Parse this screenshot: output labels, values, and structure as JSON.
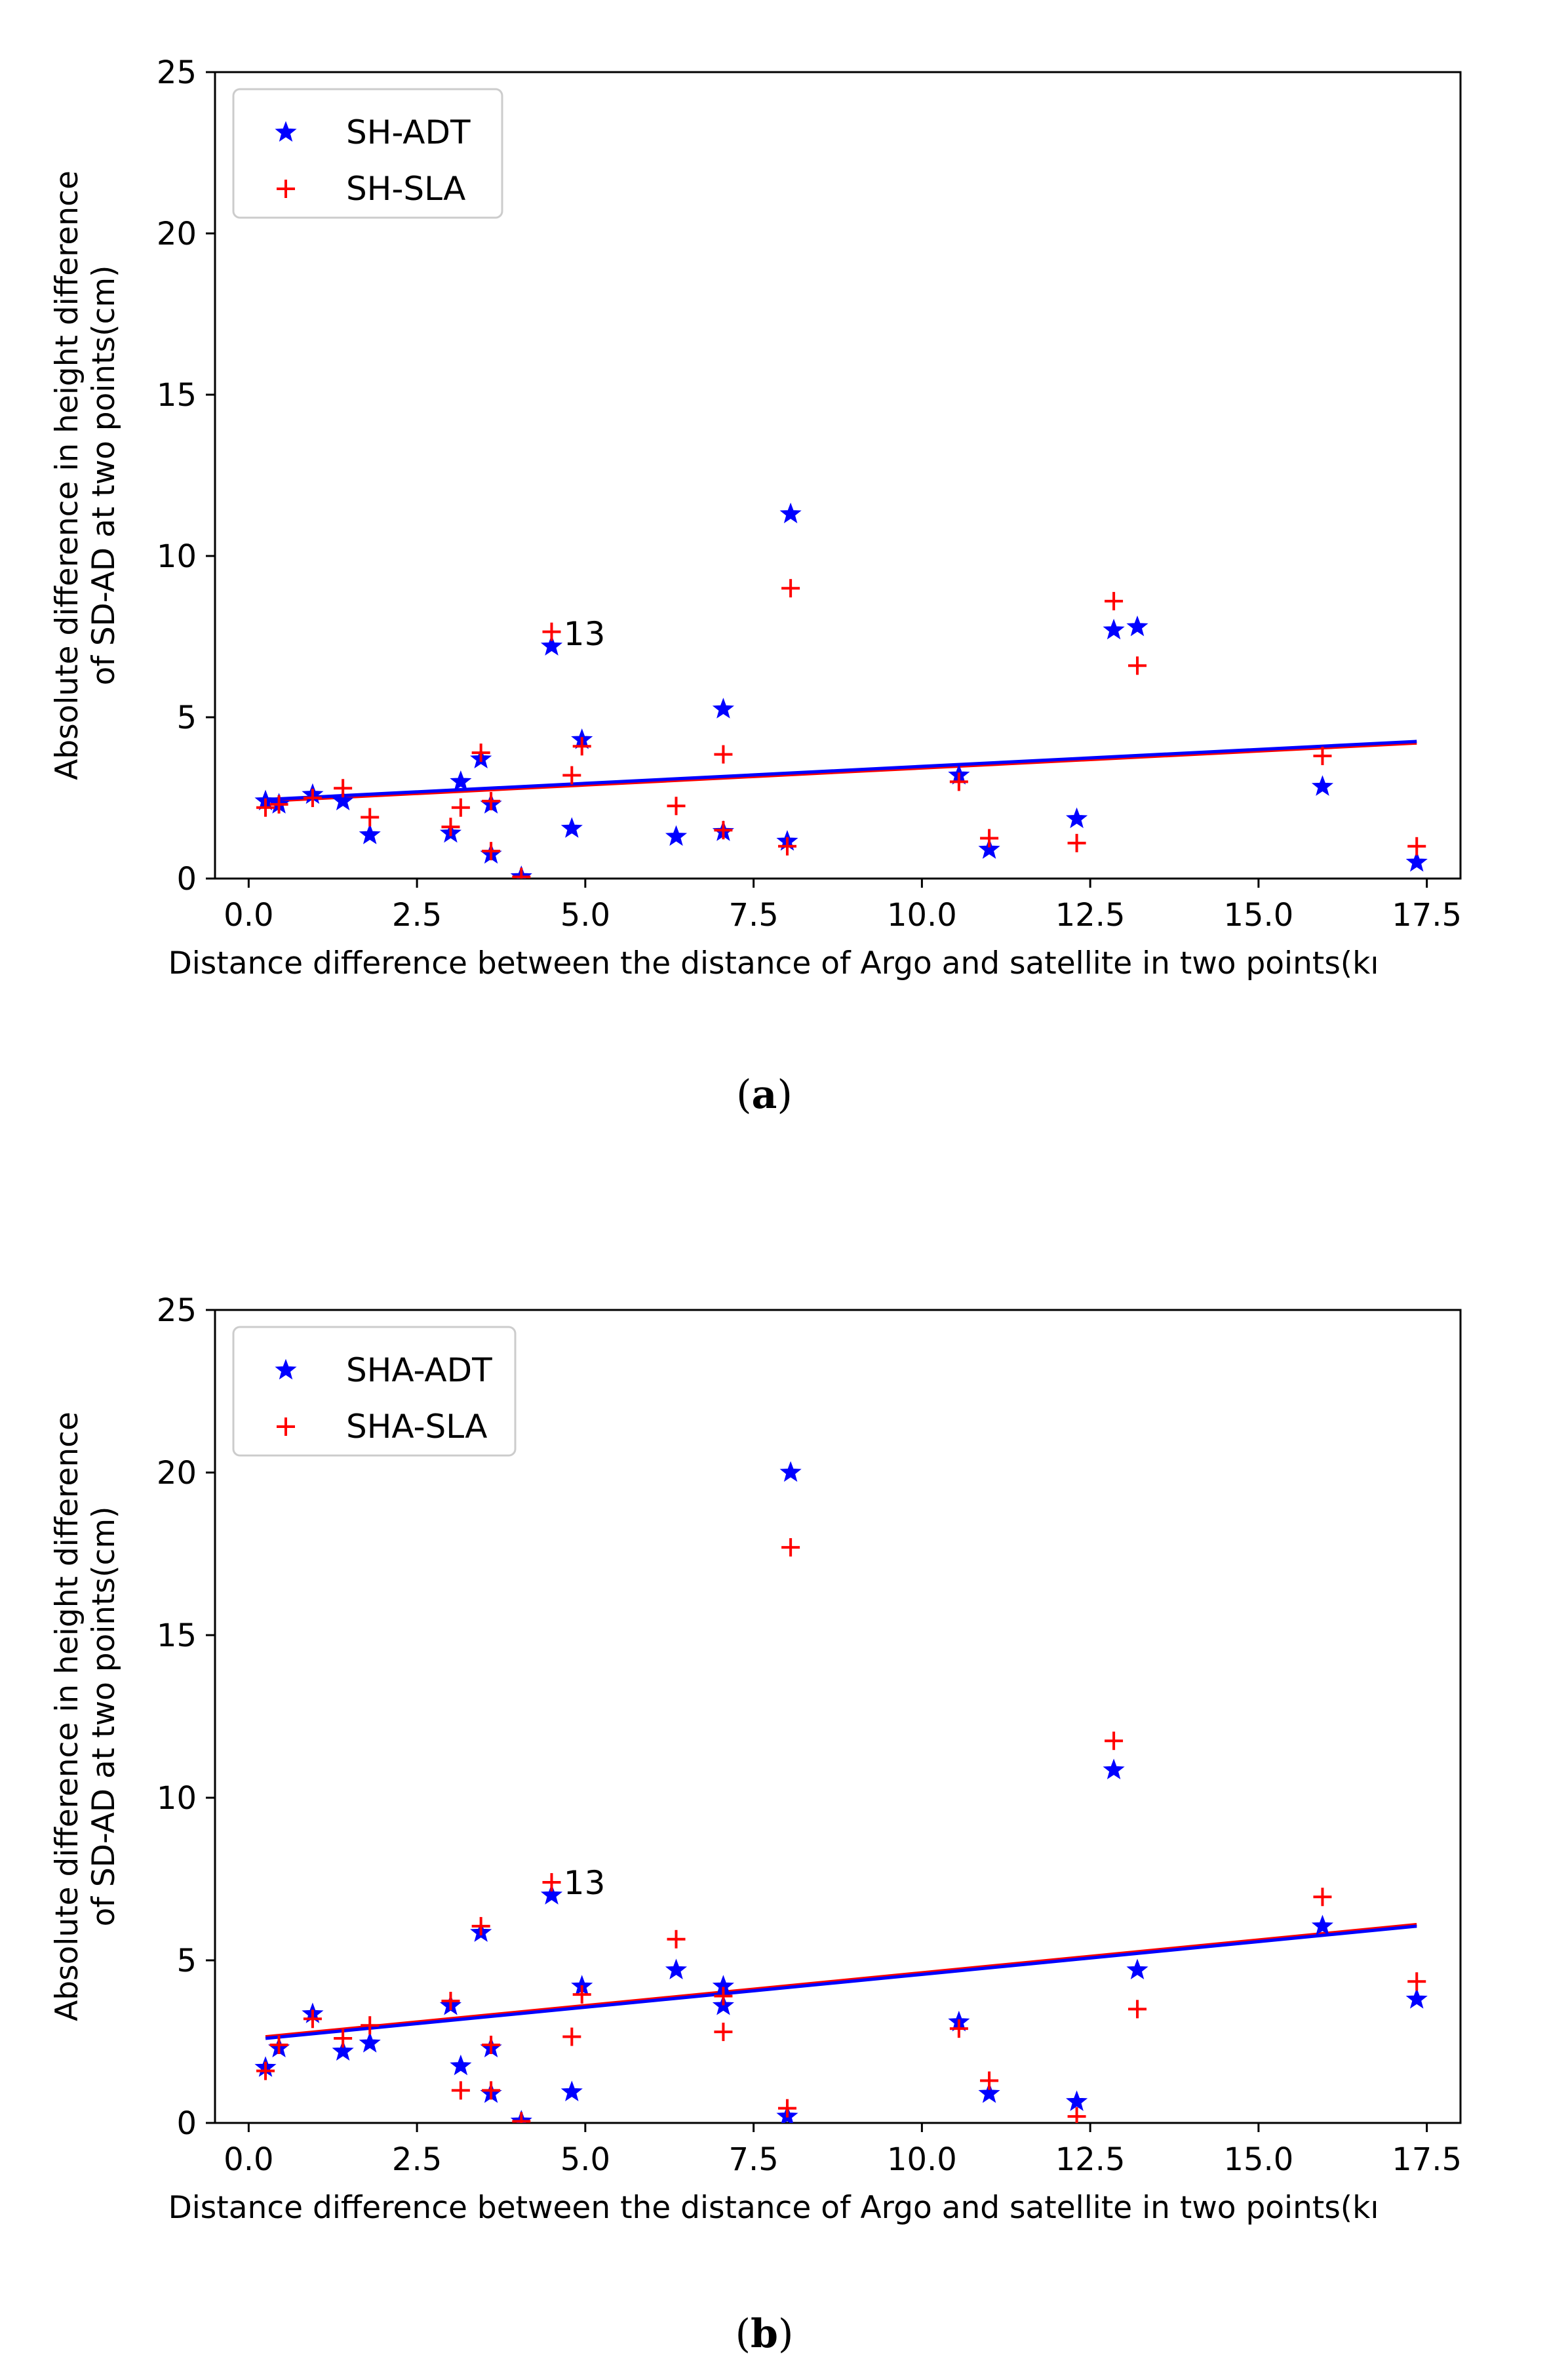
{
  "colors": {
    "adt": "#0000ff",
    "sla": "#ff0000",
    "axis": "#000000",
    "background": "#ffffff"
  },
  "chart_data": [
    {
      "id": "a",
      "type": "scatter",
      "caption": "(a)",
      "caption_letter": "a",
      "xlabel": "Distance difference between the distance of Argo and satellite in two points(kı",
      "ylabel_line1": "Absolute difference in height difference",
      "ylabel_line2": "of SD-AD at two points(cm)",
      "xlim": [
        -0.5,
        18.0
      ],
      "ylim": [
        0,
        25
      ],
      "xticks": [
        0.0,
        2.5,
        5.0,
        7.5,
        10.0,
        12.5,
        15.0,
        17.5
      ],
      "xtick_labels": [
        "0.0",
        "2.5",
        "5.0",
        "7.5",
        "10.0",
        "12.5",
        "15.0",
        "17.5"
      ],
      "yticks": [
        0,
        5,
        10,
        15,
        20,
        25
      ],
      "ytick_labels": [
        "0",
        "5",
        "10",
        "15",
        "20",
        "25"
      ],
      "legend_position": "top-left",
      "annotation": {
        "text": "13",
        "x": 4.6,
        "y": 7.6
      },
      "series": [
        {
          "name": "SH-ADT",
          "marker": "star",
          "color": "#0000ff",
          "x": [
            0.25,
            0.45,
            0.95,
            1.4,
            1.8,
            3.0,
            3.15,
            3.45,
            3.6,
            3.6,
            4.05,
            4.5,
            4.8,
            4.95,
            6.35,
            7.05,
            7.05,
            8.0,
            8.05,
            10.55,
            11.0,
            12.3,
            12.85,
            13.2,
            15.95,
            17.35
          ],
          "y": [
            2.4,
            2.3,
            2.6,
            2.4,
            1.35,
            1.4,
            3.0,
            3.7,
            2.3,
            0.75,
            0.05,
            7.2,
            1.55,
            4.3,
            1.3,
            1.45,
            5.25,
            1.15,
            11.3,
            3.2,
            0.9,
            1.85,
            7.7,
            7.8,
            2.85,
            0.5
          ]
        },
        {
          "name": "SH-SLA",
          "marker": "plus",
          "color": "#ff0000",
          "x": [
            0.25,
            0.45,
            0.95,
            1.4,
            1.8,
            3.0,
            3.15,
            3.45,
            3.6,
            3.6,
            4.05,
            4.5,
            4.8,
            4.95,
            6.35,
            7.05,
            7.05,
            8.0,
            8.05,
            10.55,
            11.0,
            12.3,
            12.85,
            13.2,
            15.95,
            17.35
          ],
          "y": [
            2.2,
            2.3,
            2.5,
            2.8,
            1.9,
            1.6,
            2.2,
            3.9,
            2.4,
            0.85,
            0.05,
            7.65,
            3.2,
            4.1,
            2.25,
            1.5,
            3.85,
            1.0,
            9.0,
            3.0,
            1.25,
            1.1,
            8.6,
            6.6,
            3.8,
            1.0
          ]
        }
      ],
      "fit_lines": [
        {
          "series": "SH-ADT",
          "color": "#0000ff",
          "x": [
            0.25,
            17.35
          ],
          "y": [
            2.45,
            4.25
          ]
        },
        {
          "series": "SH-SLA",
          "color": "#ff0000",
          "x": [
            0.25,
            17.35
          ],
          "y": [
            2.4,
            4.2
          ]
        }
      ]
    },
    {
      "id": "b",
      "type": "scatter",
      "caption": "(b)",
      "caption_letter": "b",
      "xlabel": "Distance difference between the distance of Argo and satellite in two points(kı",
      "ylabel_line1": "Absolute difference in height difference",
      "ylabel_line2": "of SD-AD at two points(cm)",
      "xlim": [
        -0.5,
        18.0
      ],
      "ylim": [
        0,
        25
      ],
      "xticks": [
        0.0,
        2.5,
        5.0,
        7.5,
        10.0,
        12.5,
        15.0,
        17.5
      ],
      "xtick_labels": [
        "0.0",
        "2.5",
        "5.0",
        "7.5",
        "10.0",
        "12.5",
        "15.0",
        "17.5"
      ],
      "yticks": [
        0,
        5,
        10,
        15,
        20,
        25
      ],
      "ytick_labels": [
        "0",
        "5",
        "10",
        "15",
        "20",
        "25"
      ],
      "legend_position": "top-left",
      "annotation": {
        "text": "13",
        "x": 4.6,
        "y": 7.4
      },
      "series": [
        {
          "name": "SHA-ADT",
          "marker": "star",
          "color": "#0000ff",
          "x": [
            0.25,
            0.45,
            0.95,
            1.4,
            1.8,
            3.0,
            3.15,
            3.45,
            3.6,
            3.6,
            4.05,
            4.5,
            4.8,
            4.95,
            6.35,
            7.05,
            7.05,
            8.0,
            8.05,
            10.55,
            11.0,
            12.3,
            12.85,
            13.2,
            15.95,
            17.35
          ],
          "y": [
            1.7,
            2.3,
            3.35,
            2.2,
            2.45,
            3.6,
            1.75,
            5.85,
            2.3,
            0.9,
            0.05,
            7.0,
            0.95,
            4.2,
            4.7,
            3.6,
            4.2,
            0.2,
            20.0,
            3.1,
            0.9,
            0.65,
            10.85,
            4.7,
            6.05,
            3.8
          ]
        },
        {
          "name": "SHA-SLA",
          "marker": "plus",
          "color": "#ff0000",
          "x": [
            0.25,
            0.45,
            0.95,
            1.4,
            1.8,
            3.0,
            3.15,
            3.45,
            3.6,
            3.6,
            4.05,
            4.5,
            4.8,
            4.95,
            6.35,
            7.05,
            7.05,
            8.0,
            8.05,
            10.55,
            11.0,
            12.3,
            12.85,
            13.2,
            15.95,
            17.35
          ],
          "y": [
            1.6,
            2.4,
            3.2,
            2.6,
            3.0,
            3.75,
            1.0,
            6.05,
            2.4,
            1.0,
            0.05,
            7.4,
            2.65,
            3.95,
            5.65,
            2.8,
            3.9,
            0.45,
            17.7,
            2.9,
            1.3,
            0.2,
            11.75,
            3.5,
            6.95,
            4.35
          ]
        }
      ],
      "fit_lines": [
        {
          "series": "SHA-ADT",
          "color": "#0000ff",
          "x": [
            0.25,
            17.35
          ],
          "y": [
            2.6,
            6.05
          ]
        },
        {
          "series": "SHA-SLA",
          "color": "#ff0000",
          "x": [
            0.25,
            17.35
          ],
          "y": [
            2.65,
            6.1
          ]
        }
      ]
    }
  ]
}
